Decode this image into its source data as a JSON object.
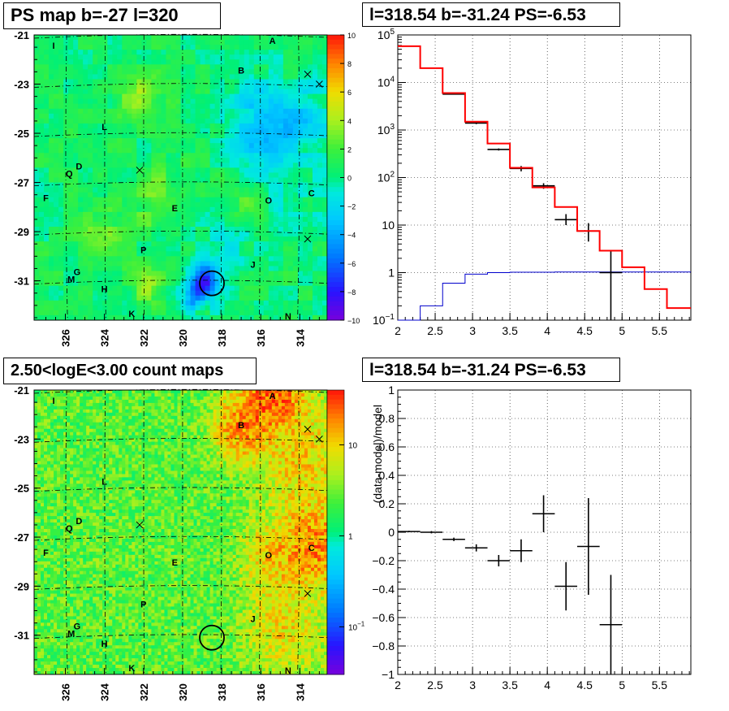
{
  "panels": {
    "ps_map": {
      "title": "PS map b=-27 l=320"
    },
    "spectrum": {
      "title": "l=318.54 b=-31.24 PS=-6.53"
    },
    "count_map": {
      "title": "2.50<logE<3.00 count maps"
    },
    "residual": {
      "title": "l=318.54 b=-31.24 PS=-6.53"
    }
  },
  "chart_data": [
    {
      "type": "heatmap",
      "panel": "ps_map",
      "title": "PS map b=-27 l=320",
      "x_ticks": [
        "326",
        "324",
        "322",
        "320",
        "318",
        "316",
        "314"
      ],
      "x_tick_values": [
        326,
        324,
        322,
        320,
        318,
        316,
        314
      ],
      "y_ticks": [
        "-21",
        "-23",
        "-25",
        "-27",
        "-29",
        "-31"
      ],
      "y_tick_values": [
        -21,
        -23,
        -25,
        -27,
        -29,
        -31
      ],
      "xlim": [
        327.6,
        312.6
      ],
      "ylim": [
        -21,
        -32.6
      ],
      "colorbar": {
        "min": -10,
        "max": 10,
        "ticks": [
          "10",
          "8",
          "6",
          "4",
          "2",
          "0",
          "−2",
          "−4",
          "−6",
          "−8",
          "−10"
        ]
      },
      "source_labels": [
        {
          "name": "A",
          "l": 315.4,
          "b": -21.2
        },
        {
          "name": "B",
          "l": 317.0,
          "b": -22.4
        },
        {
          "name": "I",
          "l": 326.6,
          "b": -21.4
        },
        {
          "name": "L",
          "l": 324.0,
          "b": -24.7
        },
        {
          "name": "D",
          "l": 325.3,
          "b": -26.3
        },
        {
          "name": "Q",
          "l": 325.8,
          "b": -26.6
        },
        {
          "name": "F",
          "l": 327.0,
          "b": -27.6
        },
        {
          "name": "E",
          "l": 320.4,
          "b": -28.0
        },
        {
          "name": "O",
          "l": 315.6,
          "b": -27.7
        },
        {
          "name": "C",
          "l": 313.4,
          "b": -27.4
        },
        {
          "name": "P",
          "l": 322.0,
          "b": -29.7
        },
        {
          "name": "J",
          "l": 316.4,
          "b": -30.3
        },
        {
          "name": "G",
          "l": 325.4,
          "b": -30.6
        },
        {
          "name": "M",
          "l": 325.7,
          "b": -30.9
        },
        {
          "name": "H",
          "l": 324.0,
          "b": -31.3
        },
        {
          "name": "K",
          "l": 322.6,
          "b": -32.3
        },
        {
          "name": "N",
          "l": 314.6,
          "b": -32.4
        }
      ],
      "crosses": [
        {
          "l": 313.6,
          "b": -22.6
        },
        {
          "l": 313.0,
          "b": -23.0
        },
        {
          "l": 322.2,
          "b": -26.5
        },
        {
          "l": 313.6,
          "b": -29.3
        }
      ],
      "circle": {
        "l": 318.5,
        "b": -31.1
      },
      "hotspots": [
        {
          "l": 318.8,
          "b": -31.0,
          "v": -8.0,
          "r": 0.7
        },
        {
          "l": 319.4,
          "b": -31.6,
          "v": -5.0,
          "r": 0.6
        },
        {
          "l": 315.6,
          "b": -25.6,
          "v": -3.0,
          "r": 1.6
        },
        {
          "l": 313.8,
          "b": -24.4,
          "v": -2.5,
          "r": 1.5
        },
        {
          "l": 316.6,
          "b": -24.0,
          "v": -2.0,
          "r": 1.5
        },
        {
          "l": 317.6,
          "b": -29.6,
          "v": -2.0,
          "r": 1.2
        },
        {
          "l": 314.4,
          "b": -28.3,
          "v": -1.8,
          "r": 1.2
        },
        {
          "l": 322.4,
          "b": -23.6,
          "v": 3.2,
          "r": 1.0
        },
        {
          "l": 321.4,
          "b": -27.6,
          "v": 2.2,
          "r": 1.2
        },
        {
          "l": 324.2,
          "b": -29.0,
          "v": 1.8,
          "r": 1.0
        },
        {
          "l": 316.8,
          "b": -27.8,
          "v": 2.0,
          "r": 0.9
        },
        {
          "l": 321.8,
          "b": -31.2,
          "v": 2.5,
          "r": 0.8
        }
      ]
    },
    {
      "type": "line",
      "panel": "spectrum",
      "title": "l=318.54 b=-31.24 PS=-6.53",
      "x_scale": "linear",
      "y_scale": "log",
      "xlim": [
        2,
        5.92
      ],
      "ylim": [
        0.1,
        100000
      ],
      "x_ticks": [
        "2",
        "2.5",
        "3",
        "3.5",
        "4",
        "4.5",
        "5",
        "5.5"
      ],
      "x_tick_values": [
        2,
        2.5,
        3,
        3.5,
        4,
        4.5,
        5,
        5.5
      ],
      "y_ticks": [
        "10^-1",
        "1",
        "10",
        "10^2",
        "10^3",
        "10^4",
        "10^5"
      ],
      "y_tick_values": [
        0.1,
        1,
        10,
        100,
        1000,
        10000,
        100000
      ],
      "grid": true,
      "bin_edges": [
        2.0,
        2.3,
        2.6,
        2.9,
        3.2,
        3.5,
        3.8,
        4.1,
        4.4,
        4.7,
        5.0,
        5.3,
        5.6,
        5.92
      ],
      "model_total": [
        58000,
        20000,
        6000,
        1500,
        520,
        160,
        62,
        24,
        7.5,
        2.9,
        1.3,
        0.45,
        0.18
      ],
      "model_source": [
        0.02,
        0.2,
        0.6,
        0.93,
        1.0,
        1.02,
        1.02,
        1.03,
        1.03,
        1.03,
        1.03,
        1.03,
        1.03
      ],
      "data": [
        {
          "x": 2.75,
          "y": 5700,
          "yerr_low": 5550,
          "yerr_high": 5850
        },
        {
          "x": 3.05,
          "y": 1400,
          "yerr_low": 1330,
          "yerr_high": 1470
        },
        {
          "x": 3.35,
          "y": 390,
          "yerr_low": 370,
          "yerr_high": 410
        },
        {
          "x": 3.65,
          "y": 155,
          "yerr_low": 135,
          "yerr_high": 175
        },
        {
          "x": 3.95,
          "y": 67,
          "yerr_low": 58,
          "yerr_high": 76
        },
        {
          "x": 4.25,
          "y": 13,
          "yerr_low": 10,
          "yerr_high": 17
        },
        {
          "x": 4.55,
          "y": 7.5,
          "yerr_low": 4.5,
          "yerr_high": 11
        },
        {
          "x": 4.85,
          "y": 1.0,
          "yerr_low": 0.1,
          "yerr_high": 2.9
        }
      ],
      "series_colors": {
        "model_total": "#ff0000",
        "model_source": "#0000cc",
        "data": "#000000"
      }
    },
    {
      "type": "heatmap",
      "panel": "count_map",
      "title": "2.50<logE<3.00 count maps",
      "x_ticks": [
        "326",
        "324",
        "322",
        "320",
        "318",
        "316",
        "314"
      ],
      "x_tick_values": [
        326,
        324,
        322,
        320,
        318,
        316,
        314
      ],
      "y_ticks": [
        "-21",
        "-23",
        "-25",
        "-27",
        "-29",
        "-31"
      ],
      "y_tick_values": [
        -21,
        -23,
        -25,
        -27,
        -29,
        -31
      ],
      "xlim": [
        327.6,
        312.6
      ],
      "ylim": [
        -21,
        -32.6
      ],
      "colorbar": {
        "scale": "log",
        "min": 0.03,
        "max": 40,
        "ticks": [
          "10",
          "1",
          "10^-1"
        ],
        "tick_values": [
          10,
          1,
          0.1
        ]
      },
      "hotspots": [
        {
          "l": 315.4,
          "b": -21.2,
          "v": 20,
          "r": 1.3
        },
        {
          "l": 317.0,
          "b": -22.5,
          "v": 14,
          "r": 1.2
        },
        {
          "l": 313.4,
          "b": -27.4,
          "v": 14,
          "r": 1.4
        },
        {
          "l": 315.6,
          "b": -27.8,
          "v": 6,
          "r": 1.2
        },
        {
          "l": 315.0,
          "b": -30.5,
          "v": 5,
          "r": 1.6
        },
        {
          "l": 314.0,
          "b": -24.0,
          "v": 6,
          "r": 1.8
        }
      ]
    },
    {
      "type": "scatter",
      "panel": "residual",
      "title": "l=318.54 b=-31.24 PS=-6.53",
      "ylabel": "(data-model)/model",
      "xlim": [
        2,
        5.92
      ],
      "ylim": [
        -1,
        1
      ],
      "x_ticks": [
        "2",
        "2.5",
        "3",
        "3.5",
        "4",
        "4.5",
        "5",
        "5.5"
      ],
      "x_tick_values": [
        2,
        2.5,
        3,
        3.5,
        4,
        4.5,
        5,
        5.5
      ],
      "y_ticks": [
        "1",
        "0.8",
        "0.6",
        "0.4",
        "0.2",
        "0",
        "-0.2",
        "-0.4",
        "-0.6",
        "-0.8",
        "-1"
      ],
      "y_tick_values": [
        1,
        0.8,
        0.6,
        0.4,
        0.2,
        0,
        -0.2,
        -0.4,
        -0.6,
        -0.8,
        -1
      ],
      "grid": true,
      "points": [
        {
          "x": 2.15,
          "y": 0.005,
          "xerr": 0.15,
          "yerr": 0.005
        },
        {
          "x": 2.45,
          "y": 0.0,
          "xerr": 0.15,
          "yerr": 0.008
        },
        {
          "x": 2.75,
          "y": -0.05,
          "xerr": 0.15,
          "yerr": 0.012
        },
        {
          "x": 3.05,
          "y": -0.11,
          "xerr": 0.15,
          "yerr": 0.025
        },
        {
          "x": 3.35,
          "y": -0.2,
          "xerr": 0.15,
          "yerr": 0.04
        },
        {
          "x": 3.65,
          "y": -0.13,
          "xerr": 0.15,
          "yerr": 0.08
        },
        {
          "x": 3.95,
          "y": 0.13,
          "xerr": 0.15,
          "yerr": 0.13
        },
        {
          "x": 4.25,
          "y": -0.38,
          "xerr": 0.15,
          "yerr": 0.17
        },
        {
          "x": 4.55,
          "y": -0.1,
          "xerr": 0.15,
          "yerr": 0.34
        },
        {
          "x": 4.85,
          "y": -0.65,
          "xerr": 0.15,
          "yerr": 0.35
        }
      ]
    }
  ]
}
